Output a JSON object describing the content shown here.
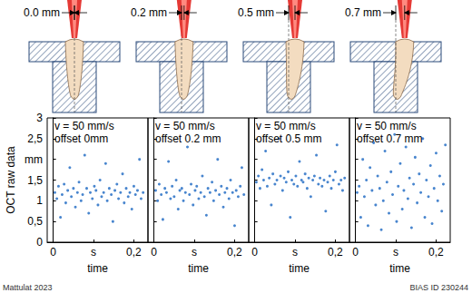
{
  "header": {
    "diagrams": [
      {
        "label": "0.0 mm",
        "offset": 0.0
      },
      {
        "label": "0.2 mm",
        "offset": 0.2
      },
      {
        "label": "0.5 mm",
        "offset": 0.5
      },
      {
        "label": "0.7 mm",
        "offset": 0.7
      }
    ]
  },
  "chart_data": [
    {
      "type": "scatter",
      "title": "v = 50 mm/s",
      "subtitle": "offset 0mm",
      "ylabel": "OCT raw data",
      "xlabel": "time",
      "x": [
        0.004,
        0.009,
        0.013,
        0.018,
        0.022,
        0.027,
        0.031,
        0.036,
        0.041,
        0.045,
        0.05,
        0.055,
        0.06,
        0.064,
        0.069,
        0.073,
        0.078,
        0.083,
        0.088,
        0.092,
        0.097,
        0.102,
        0.106,
        0.111,
        0.116,
        0.12,
        0.125,
        0.13,
        0.134,
        0.139,
        0.144,
        0.148,
        0.153,
        0.158,
        0.162,
        0.167,
        0.172,
        0.176,
        0.181,
        0.186,
        0.19,
        0.195,
        0.2,
        0.204,
        0.209,
        0.214,
        0.218,
        0.223
      ],
      "values": [
        1.2,
        1.05,
        1.35,
        0.6,
        1.15,
        1.4,
        0.95,
        1.25,
        1.8,
        1.1,
        1.3,
        0.85,
        1.2,
        1.45,
        1.0,
        1.15,
        2.1,
        1.3,
        0.7,
        1.2,
        1.05,
        1.35,
        1.25,
        0.9,
        1.5,
        1.1,
        1.2,
        1.9,
        1.0,
        1.3,
        1.15,
        0.5,
        1.25,
        1.4,
        1.05,
        1.2,
        1.65,
        0.95,
        1.3,
        1.1,
        1.2,
        0.8,
        1.35,
        1.15,
        1.25,
        2.0,
        1.05,
        1.2
      ],
      "color": "#1a66c2",
      "marker": "circle",
      "xlim": [
        -0.015,
        0.235
      ],
      "xticks": [
        0,
        {
          "value": 0.1,
          "label": "s"
        },
        {
          "value": 0.2,
          "label": "0,2"
        }
      ],
      "ylim": [
        0,
        3
      ],
      "yticks": [
        0,
        {
          "value": 0.5,
          "label": "0,5"
        },
        1,
        {
          "value": 1.5,
          "label": "1,5"
        },
        {
          "value": 2,
          "label": "mm"
        },
        {
          "value": 2.5,
          "label": "2,5"
        },
        3
      ],
      "grid": false,
      "tick_labels": true
    },
    {
      "type": "scatter",
      "title": "v = 50 mm/s",
      "subtitle": "offset 0.2 mm",
      "xlabel": "time",
      "x": [
        0.004,
        0.009,
        0.013,
        0.018,
        0.022,
        0.027,
        0.031,
        0.036,
        0.041,
        0.045,
        0.05,
        0.055,
        0.06,
        0.064,
        0.069,
        0.073,
        0.078,
        0.083,
        0.088,
        0.092,
        0.097,
        0.102,
        0.106,
        0.111,
        0.116,
        0.12,
        0.125,
        0.13,
        0.134,
        0.139,
        0.144,
        0.148,
        0.153,
        0.158,
        0.162,
        0.167,
        0.172,
        0.176,
        0.181,
        0.186,
        0.19,
        0.195,
        0.2,
        0.204,
        0.209,
        0.214,
        0.218,
        0.223
      ],
      "values": [
        1.25,
        1.0,
        1.4,
        1.15,
        0.55,
        1.3,
        1.2,
        1.95,
        1.05,
        1.35,
        1.1,
        1.5,
        0.8,
        1.25,
        1.3,
        1.0,
        1.2,
        2.3,
        1.15,
        1.4,
        0.9,
        1.25,
        1.35,
        1.05,
        1.2,
        1.6,
        1.1,
        0.65,
        1.3,
        1.2,
        1.45,
        1.0,
        1.25,
        2.0,
        1.15,
        1.35,
        0.85,
        1.2,
        1.3,
        1.05,
        1.5,
        1.2,
        0.4,
        1.25,
        1.1,
        1.35,
        1.8,
        1.15
      ],
      "color": "#1a66c2",
      "marker": "circle",
      "xlim": [
        -0.015,
        0.235
      ],
      "xticks": [
        0,
        {
          "value": 0.1,
          "label": "s"
        },
        {
          "value": 0.2,
          "label": "0,2"
        }
      ],
      "ylim": [
        0,
        3
      ],
      "yticks": [
        0,
        {
          "value": 0.5,
          "label": "0,5"
        },
        1,
        {
          "value": 1.5,
          "label": "1,5"
        },
        {
          "value": 2,
          "label": "mm"
        },
        {
          "value": 2.5,
          "label": "2,5"
        },
        3
      ],
      "grid": false,
      "tick_labels": "x"
    },
    {
      "type": "scatter",
      "title": "v = 50 mm/s",
      "subtitle": "offset 0.5 mm",
      "xlabel": "time",
      "x": [
        0.004,
        0.009,
        0.013,
        0.018,
        0.022,
        0.027,
        0.031,
        0.036,
        0.041,
        0.045,
        0.05,
        0.055,
        0.06,
        0.064,
        0.069,
        0.073,
        0.078,
        0.083,
        0.088,
        0.092,
        0.097,
        0.102,
        0.106,
        0.111,
        0.116,
        0.12,
        0.125,
        0.13,
        0.134,
        0.139,
        0.144,
        0.148,
        0.153,
        0.158,
        0.162,
        0.167,
        0.172,
        0.176,
        0.181,
        0.186,
        0.19,
        0.195,
        0.2,
        0.204,
        0.209,
        0.214,
        0.218,
        0.223
      ],
      "values": [
        1.45,
        1.6,
        1.3,
        1.75,
        1.5,
        2.2,
        1.35,
        1.55,
        0.9,
        1.65,
        1.4,
        1.5,
        2.5,
        1.6,
        1.25,
        1.55,
        1.45,
        1.7,
        0.6,
        1.5,
        1.4,
        1.6,
        1.35,
        1.95,
        1.5,
        1.45,
        1.65,
        1.3,
        1.55,
        1.1,
        1.5,
        1.6,
        2.1,
        1.4,
        1.55,
        1.35,
        1.5,
        0.75,
        1.45,
        1.6,
        1.3,
        1.5,
        1.7,
        2.35,
        1.4,
        1.5,
        1.25,
        1.55
      ],
      "color": "#1a66c2",
      "marker": "circle",
      "xlim": [
        -0.015,
        0.235
      ],
      "xticks": [
        0,
        {
          "value": 0.1,
          "label": "s"
        },
        {
          "value": 0.2,
          "label": "0,2"
        }
      ],
      "ylim": [
        0,
        3
      ],
      "yticks": [
        0,
        {
          "value": 0.5,
          "label": "0,5"
        },
        1,
        {
          "value": 1.5,
          "label": "1,5"
        },
        {
          "value": 2,
          "label": "mm"
        },
        {
          "value": 2.5,
          "label": "2,5"
        },
        3
      ],
      "grid": false,
      "tick_labels": "x"
    },
    {
      "type": "scatter",
      "title": "v = 50 mm/s",
      "subtitle": "offset 0.7 mm",
      "xlabel": "time",
      "x": [
        0.004,
        0.009,
        0.013,
        0.018,
        0.022,
        0.027,
        0.031,
        0.036,
        0.041,
        0.045,
        0.05,
        0.055,
        0.06,
        0.064,
        0.069,
        0.073,
        0.078,
        0.083,
        0.088,
        0.092,
        0.097,
        0.102,
        0.106,
        0.111,
        0.116,
        0.12,
        0.125,
        0.13,
        0.134,
        0.139,
        0.144,
        0.148,
        0.153,
        0.158,
        0.162,
        0.167,
        0.172,
        0.176,
        0.181,
        0.186,
        0.19,
        0.195,
        0.2,
        0.204,
        0.209,
        0.214,
        0.218,
        0.223
      ],
      "values": [
        1.2,
        1.35,
        0.6,
        2.0,
        1.1,
        1.5,
        0.4,
        1.8,
        1.25,
        2.4,
        0.9,
        1.6,
        1.3,
        0.3,
        1.0,
        2.2,
        1.45,
        0.7,
        1.7,
        1.15,
        2.6,
        0.5,
        1.35,
        1.9,
        0.8,
        1.25,
        2.3,
        1.05,
        1.55,
        0.35,
        1.4,
        2.05,
        0.95,
        1.65,
        1.2,
        2.5,
        0.6,
        1.5,
        1.1,
        1.85,
        0.45,
        1.3,
        2.15,
        1.0,
        1.6,
        0.75,
        1.4,
        2.35
      ],
      "color": "#1a66c2",
      "marker": "circle",
      "xlim": [
        -0.015,
        0.235
      ],
      "xticks": [
        0,
        {
          "value": 0.1,
          "label": "s"
        },
        {
          "value": 0.2,
          "label": "0,2"
        }
      ],
      "ylim": [
        0,
        3
      ],
      "yticks": [
        0,
        {
          "value": 0.5,
          "label": "0,5"
        },
        1,
        {
          "value": 1.5,
          "label": "1,5"
        },
        {
          "value": 2,
          "label": "mm"
        },
        {
          "value": 2.5,
          "label": "2,5"
        },
        3
      ],
      "grid": false,
      "tick_labels": "x"
    }
  ],
  "footer": {
    "left": "Mattulat 2023",
    "right": "BIAS ID 230244"
  }
}
